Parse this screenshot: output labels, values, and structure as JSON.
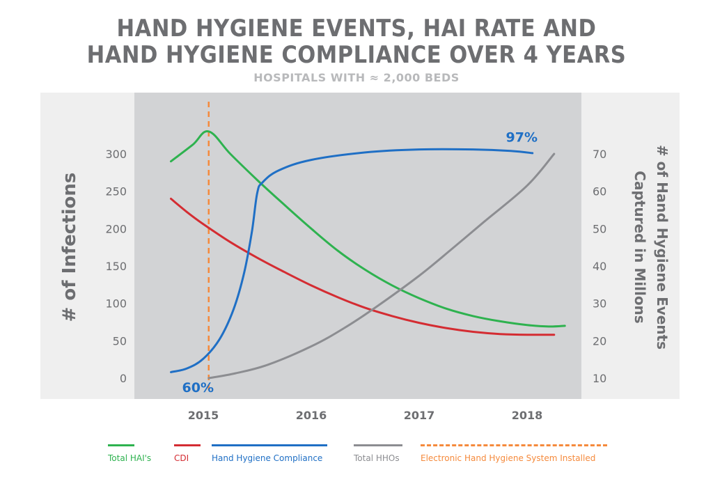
{
  "header": {
    "title_line1": "HAND HYGIENE EVENTS, HAI RATE AND",
    "title_line2": "HAND HYGIENE COMPLIANCE OVER 4 YEARS",
    "subtitle": "HOSPITALS WITH ≈ 2,000 BEDS"
  },
  "colors": {
    "panel_bg": "#efefef",
    "plot_bg": "#d2d3d5",
    "total_hai": "#2eb24f",
    "cdi": "#d42c32",
    "compliance": "#1f6fc5",
    "total_hho": "#8c8d91",
    "install_line": "#f58a3c",
    "axis_text": "#6d6e71"
  },
  "chart_data": {
    "type": "line",
    "ylabel_left": "# of Infections",
    "ylabel_right": "# of Hand Hygiene Events Captured in Millons",
    "y_left_ticks": [
      0,
      50,
      100,
      150,
      200,
      250,
      300
    ],
    "y_right_ticks": [
      10,
      20,
      30,
      40,
      50,
      60,
      70
    ],
    "ylim_left": [
      0,
      300
    ],
    "ylim_right": [
      10,
      70
    ],
    "x_ticks": [
      "2015",
      "2016",
      "2017",
      "2018"
    ],
    "xlim": [
      2014.45,
      2018.5
    ],
    "install_year": 2015.05,
    "annotations": [
      {
        "text": "60%",
        "x": 2014.95,
        "y": -12,
        "series": "Hand Hygiene Compliance"
      },
      {
        "text": "97%",
        "x": 2017.95,
        "y": 323,
        "series": "Hand Hygiene Compliance"
      }
    ],
    "series": [
      {
        "name": "Total HAI's",
        "axis": "left",
        "color_key": "total_hai",
        "x": [
          2014.7,
          2014.9,
          2015.05,
          2015.25,
          2015.5,
          2015.75,
          2016.0,
          2016.25,
          2016.5,
          2016.75,
          2017.0,
          2017.25,
          2017.5,
          2017.75,
          2018.0,
          2018.2,
          2018.35
        ],
        "y": [
          290,
          312,
          330,
          300,
          265,
          232,
          200,
          170,
          145,
          124,
          107,
          93,
          83,
          76,
          71,
          69,
          70
        ]
      },
      {
        "name": "CDI",
        "axis": "left",
        "color_key": "cdi",
        "x": [
          2014.7,
          2014.85,
          2015.0,
          2015.25,
          2015.5,
          2015.75,
          2016.0,
          2016.25,
          2016.5,
          2016.75,
          2017.0,
          2017.25,
          2017.5,
          2017.75,
          2018.0,
          2018.25
        ],
        "y": [
          240,
          222,
          206,
          182,
          161,
          142,
          124,
          108,
          94,
          83,
          74,
          67,
          62,
          59,
          58,
          58
        ]
      },
      {
        "name": "Hand Hygiene Compliance",
        "axis": "left",
        "color_key": "compliance",
        "x": [
          2014.7,
          2014.85,
          2015.0,
          2015.15,
          2015.28,
          2015.38,
          2015.45,
          2015.5,
          2015.55,
          2015.7,
          2016.0,
          2016.5,
          2017.0,
          2017.5,
          2017.85,
          2018.05
        ],
        "y": [
          8,
          13,
          26,
          52,
          92,
          142,
          196,
          248,
          262,
          278,
          292,
          302,
          306,
          306,
          304,
          301
        ]
      },
      {
        "name": "Total HHOs",
        "axis": "right",
        "color_key": "total_hho",
        "x": [
          2015.05,
          2015.3,
          2015.6,
          2016.0,
          2016.3,
          2016.6,
          2017.0,
          2017.3,
          2017.6,
          2018.0,
          2018.25
        ],
        "y": [
          10,
          11.3,
          13.6,
          18.5,
          23.3,
          29,
          37.4,
          44.5,
          51.8,
          61.5,
          70
        ]
      }
    ],
    "legend_position": "bottom",
    "legend": [
      {
        "label": "Total HAI's",
        "color_key": "total_hai",
        "dashed": false
      },
      {
        "label": "CDI",
        "color_key": "cdi",
        "dashed": false
      },
      {
        "label": "Hand Hygiene Compliance",
        "color_key": "compliance",
        "dashed": false
      },
      {
        "label": "Total HHOs",
        "color_key": "total_hho",
        "dashed": false
      },
      {
        "label": "Electronic Hand Hygiene System Installed",
        "color_key": "install_line",
        "dashed": true
      }
    ]
  }
}
